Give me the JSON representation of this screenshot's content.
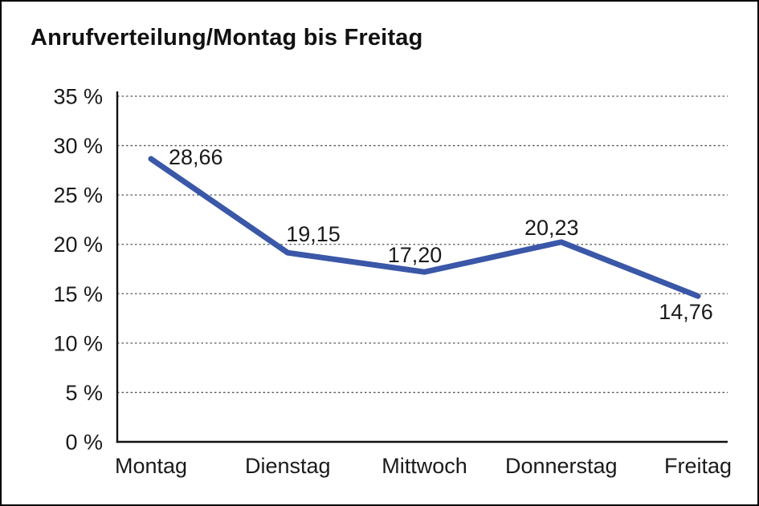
{
  "frame": {
    "background": "#ffffff",
    "border_color": "#000000"
  },
  "title": "Anrufverteilung/Montag bis Freitag",
  "chart_data": {
    "type": "line",
    "title": "Anrufverteilung/Montag bis Freitag",
    "categories": [
      "Montag",
      "Dienstag",
      "Mittwoch",
      "Donnerstag",
      "Freitag"
    ],
    "values": [
      28.66,
      19.15,
      17.2,
      20.23,
      14.76
    ],
    "data_labels": [
      "28,66",
      "19,15",
      "17,20",
      "20,23",
      "14,76"
    ],
    "xlabel": "",
    "ylabel": "",
    "ylim": [
      0,
      35
    ],
    "y_tick_step": 5,
    "y_tick_labels": [
      "0 %",
      "5 %",
      "10 %",
      "15 %",
      "20 %",
      "25 %",
      "30 %",
      "35 %"
    ],
    "grid": "horizontal-dotted",
    "legend": "none",
    "line_color": "#3A57A8",
    "line_width": 7,
    "marker": "none",
    "text_color": "#1a1a1a",
    "axis_color": "#111111",
    "grid_color": "#555555"
  }
}
